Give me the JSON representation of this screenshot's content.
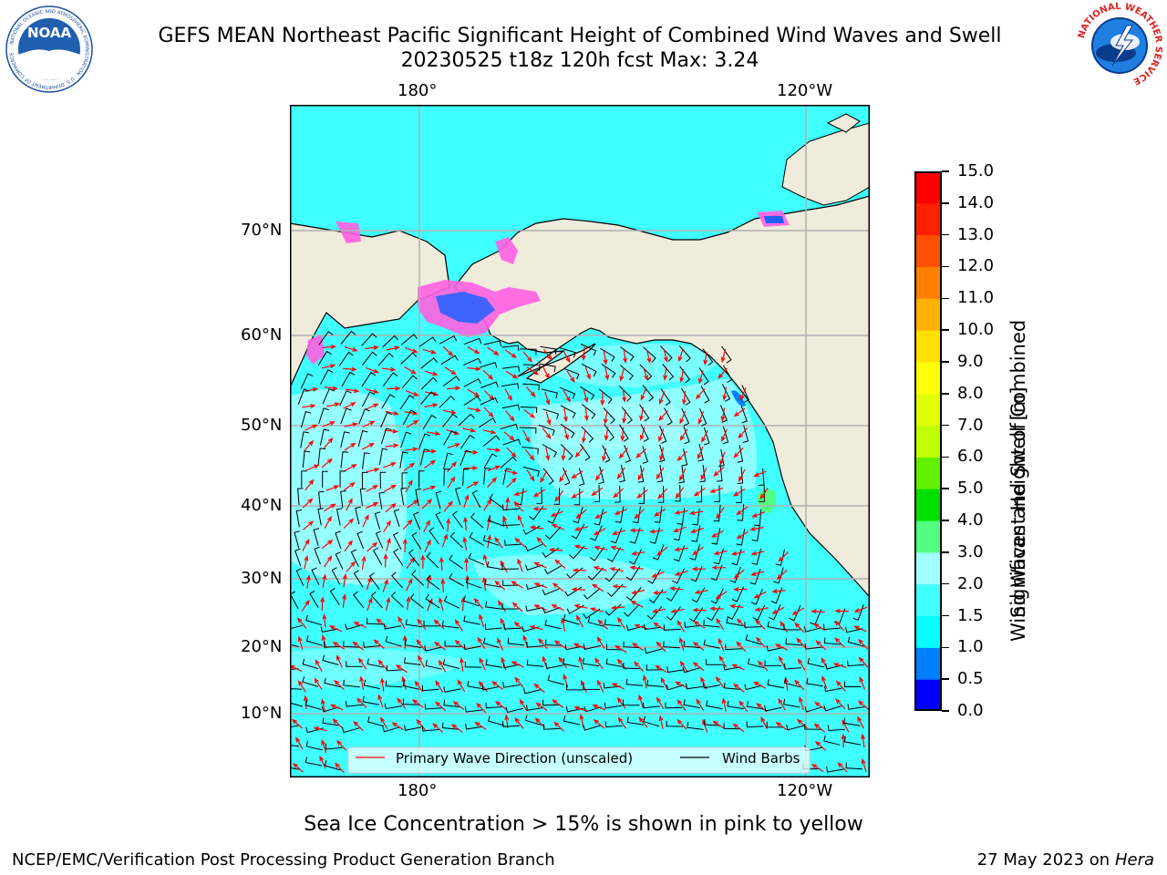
{
  "title": {
    "line1": "GEFS MEAN Northeast Pacific Significant Height of Combined Wind Waves and Swell",
    "line2": "20230525 t18z 120h fcst   Max: 3.24"
  },
  "axes": {
    "lon_labels": [
      "180°",
      "120°W"
    ],
    "lat_labels": [
      "70°N",
      "60°N",
      "50°N",
      "40°N",
      "30°N",
      "20°N",
      "10°N"
    ]
  },
  "legend": {
    "wave_label": "Primary Wave Direction (unscaled)",
    "wind_label": "Wind Barbs"
  },
  "colorbar": {
    "title_line1": "Significant Height of Combined",
    "title_line2": "Wind Waves and Swell [m]",
    "ticks": [
      "0.0",
      "0.5",
      "1.0",
      "1.5",
      "2.0",
      "3.0",
      "4.0",
      "5.0",
      "6.0",
      "7.0",
      "8.0",
      "9.0",
      "10.0",
      "11.0",
      "12.0",
      "13.0",
      "14.0",
      "15.0"
    ],
    "colors": [
      "#0000ff",
      "#0080ff",
      "#00ffff",
      "#40ffff",
      "#a0ffff",
      "#50ff80",
      "#00e000",
      "#60f000",
      "#c0ff00",
      "#e0ff00",
      "#ffff00",
      "#ffe000",
      "#ffb000",
      "#ff8000",
      "#ff5000",
      "#ff2000",
      "#ff0000"
    ]
  },
  "colors": {
    "land": "#efecdc",
    "ocean": "#40ffff",
    "ocean_light": "#a0ffff",
    "ice": "#ff60e0",
    "wave_arrow": "#ff0000",
    "barb": "#000000",
    "grid": "#b0b0b0"
  },
  "note": "Sea Ice Concentration > 15% is shown in pink to yellow",
  "footer": {
    "left": "NCEP/EMC/Verification Post Processing Product Generation Branch",
    "right_date": "27 May 2023 on",
    "right_host": "Hera"
  },
  "logos": {
    "left": "NOAA",
    "left_ring": "NATIONAL OCEANIC AND ATMOSPHERIC ADMINISTRATION · U.S. DEPARTMENT OF COMMERCE",
    "right_ring": "NATIONAL WEATHER SERVICE"
  }
}
